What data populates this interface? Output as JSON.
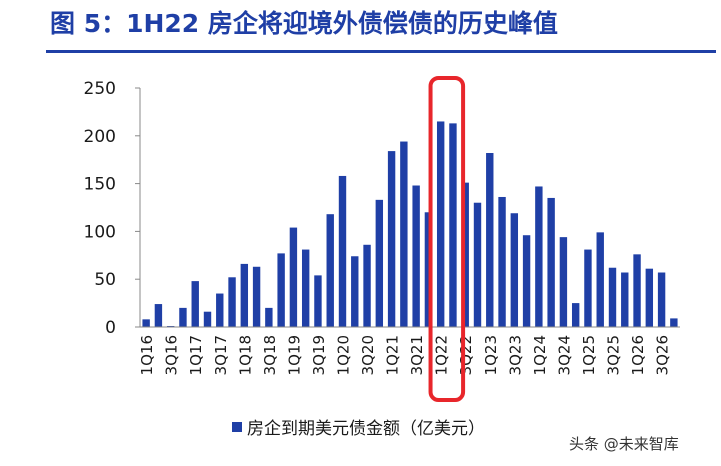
{
  "title": "图 5：1H22 房企将迎境外债偿债的历史峰值",
  "watermark": "头条 @未来智库",
  "chart_data": {
    "type": "bar",
    "categories": [
      "1Q16",
      "2Q16",
      "3Q16",
      "4Q16",
      "1Q17",
      "2Q17",
      "3Q17",
      "4Q17",
      "1Q18",
      "2Q18",
      "3Q18",
      "4Q18",
      "1Q19",
      "2Q19",
      "3Q19",
      "4Q19",
      "1Q20",
      "2Q20",
      "3Q20",
      "4Q20",
      "1Q21",
      "2Q21",
      "3Q21",
      "4Q21",
      "1Q22",
      "2Q22",
      "3Q22",
      "4Q22",
      "1Q23",
      "2Q23",
      "3Q23",
      "4Q23",
      "1Q24",
      "2Q24",
      "3Q24",
      "4Q24",
      "1Q25",
      "2Q25",
      "3Q25",
      "4Q25",
      "1Q26",
      "2Q26",
      "3Q26",
      "4Q26"
    ],
    "tick_labels": [
      "1Q16",
      "3Q16",
      "1Q17",
      "3Q17",
      "1Q18",
      "3Q18",
      "1Q19",
      "3Q19",
      "1Q20",
      "3Q20",
      "1Q21",
      "3Q21",
      "1Q22",
      "3Q22",
      "1Q23",
      "3Q23",
      "1Q24",
      "3Q24",
      "1Q25",
      "3Q25",
      "1Q26",
      "3Q26"
    ],
    "series": [
      {
        "name": "房企到期美元债金额（亿美元）",
        "color": "#1f3fa6",
        "values": [
          8,
          24,
          1,
          20,
          48,
          16,
          35,
          52,
          66,
          63,
          20,
          77,
          104,
          81,
          54,
          118,
          158,
          74,
          86,
          133,
          184,
          194,
          148,
          120,
          215,
          213,
          151,
          130,
          182,
          136,
          119,
          96,
          147,
          135,
          94,
          25,
          81,
          99,
          62,
          57,
          76,
          61,
          57,
          9
        ]
      }
    ],
    "ylim": [
      0,
      250
    ],
    "yticks": [
      0,
      50,
      100,
      150,
      200,
      250
    ],
    "legend_position": "bottom",
    "highlight": {
      "categories": [
        "1Q22",
        "2Q22"
      ],
      "color": "#e8262b"
    },
    "grid": false
  }
}
